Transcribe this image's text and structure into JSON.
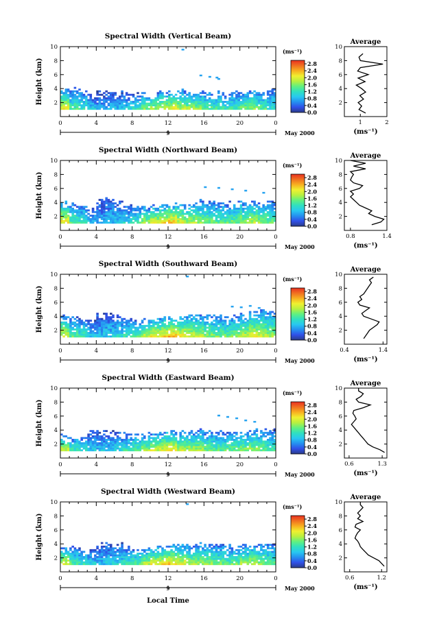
{
  "figure": {
    "xlabel": "Local Time",
    "date_label": "May 2000",
    "day_label": "9"
  },
  "colorbar": {
    "unit": "(ms⁻¹)",
    "ticks": [
      "2.8",
      "2.4",
      "2.0",
      "1.6",
      "1.2",
      "0.8",
      "0.4",
      "0.0"
    ],
    "range": [
      0,
      3.0
    ],
    "stops": [
      "#2b3c88",
      "#3050e8",
      "#2590f0",
      "#28c8f0",
      "#30e0c0",
      "#60f080",
      "#b8f040",
      "#f0f030",
      "#f8b020",
      "#f07020",
      "#e83020"
    ]
  },
  "chart_data": [
    {
      "type": "heatmap",
      "title": "Spectral Width (Vertical Beam)",
      "ylabel": "Height (km)",
      "xlim": [
        0,
        24
      ],
      "ylim": [
        0,
        10
      ],
      "x_ticks": [
        "0",
        "4",
        "8",
        "12",
        "16",
        "20",
        "0"
      ],
      "y_ticks": [
        "2",
        "4",
        "6",
        "8",
        "10"
      ],
      "echo_base_km": 0.9,
      "echo_top_km": [
        3.9,
        3.9,
        3.7,
        3.0,
        3.5,
        3.6,
        3.5,
        3.4,
        3.2,
        3.3,
        3.4,
        3.5,
        3.5,
        3.6,
        3.4,
        3.5,
        3.4,
        3.3,
        3.2,
        3.4,
        3.5,
        3.6,
        3.5,
        3.8
      ],
      "width_at_base_ms": [
        2.1,
        1.4,
        1.3,
        1.0,
        0.7,
        0.8,
        0.9,
        1.0,
        1.2,
        1.6,
        1.8,
        2.0,
        2.1,
        1.9,
        1.8,
        1.7,
        1.5,
        1.4,
        1.3,
        1.4,
        1.6,
        1.7,
        1.5,
        1.2
      ],
      "sparse_echo": {
        "x": [
          13.5,
          15.5,
          16.5,
          17.3,
          17.5
        ],
        "y": [
          9.7,
          6.0,
          5.8,
          5.7,
          5.5
        ]
      },
      "average_profile": {
        "title": "Average",
        "xlabel": "(ms⁻¹)",
        "xlim": [
          0.4,
          2.0
        ],
        "x_ticks": [
          "1",
          "2"
        ],
        "x_tick_values": [
          1,
          2
        ],
        "y_ticks": [
          "2",
          "4",
          "6",
          "8",
          "10"
        ],
        "height_km": [
          0.5,
          1.0,
          1.5,
          2.0,
          2.5,
          3.0,
          3.5,
          4.0,
          4.5,
          5.0,
          5.5,
          6.0,
          6.5,
          7.0,
          7.5,
          8.0,
          8.5,
          9.0
        ],
        "width_ms": [
          1.2,
          0.95,
          1.05,
          0.92,
          1.12,
          0.98,
          1.2,
          1.05,
          0.85,
          1.18,
          0.92,
          1.3,
          0.9,
          1.0,
          1.85,
          1.0,
          0.95,
          1.1
        ]
      }
    },
    {
      "type": "heatmap",
      "title": "Spectral Width (Northward Beam)",
      "ylabel": "Height (km)",
      "xlim": [
        0,
        24
      ],
      "ylim": [
        0,
        10
      ],
      "x_ticks": [
        "0",
        "4",
        "8",
        "12",
        "16",
        "20",
        "0"
      ],
      "y_ticks": [
        "2",
        "4",
        "6",
        "8",
        "10"
      ],
      "echo_base_km": 0.9,
      "echo_top_km": [
        3.9,
        3.8,
        3.6,
        3.0,
        4.2,
        4.3,
        4.0,
        3.6,
        3.2,
        3.3,
        3.4,
        3.6,
        3.7,
        3.7,
        3.5,
        4.2,
        4.1,
        4.0,
        3.8,
        3.8,
        4.0,
        4.2,
        4.0,
        4.2
      ],
      "width_at_base_ms": [
        2.2,
        1.5,
        1.3,
        0.9,
        0.8,
        0.9,
        1.0,
        1.1,
        1.4,
        1.8,
        2.1,
        2.2,
        2.4,
        2.1,
        1.9,
        1.8,
        1.6,
        1.5,
        1.5,
        1.6,
        1.8,
        1.9,
        1.7,
        1.5
      ],
      "sparse_echo": {
        "x": [
          16.0,
          17.5,
          19.0,
          20.5,
          22.5
        ],
        "y": [
          6.3,
          6.2,
          6.0,
          5.8,
          5.5
        ]
      },
      "average_profile": {
        "title": "Average",
        "xlabel": "(ms⁻¹)",
        "xlim": [
          0.7,
          1.4
        ],
        "x_ticks": [
          "0.8",
          "1.4"
        ],
        "x_tick_values": [
          0.8,
          1.4
        ],
        "y_ticks": [
          "2",
          "4",
          "6",
          "8",
          "10"
        ],
        "height_km": [
          0.8,
          1.2,
          1.6,
          2.0,
          2.4,
          2.8,
          3.2,
          3.6,
          4.0,
          4.4,
          4.8,
          5.2,
          5.6,
          6.0,
          6.4,
          6.8,
          7.2,
          7.6,
          8.0,
          8.4,
          8.8,
          9.2,
          9.6,
          10.0
        ],
        "width_ms": [
          1.15,
          1.3,
          1.35,
          1.2,
          1.1,
          1.15,
          1.05,
          0.95,
          0.9,
          0.85,
          0.8,
          0.85,
          0.8,
          0.95,
          1.0,
          0.85,
          0.8,
          0.82,
          0.85,
          0.8,
          1.05,
          0.85,
          1.05,
          0.8
        ]
      }
    },
    {
      "type": "heatmap",
      "title": "Spectral Width (Southward Beam)",
      "ylabel": "Height (km)",
      "xlim": [
        0,
        24
      ],
      "ylim": [
        0,
        10
      ],
      "x_ticks": [
        "0",
        "4",
        "8",
        "12",
        "16",
        "20",
        "0"
      ],
      "y_ticks": [
        "2",
        "4",
        "6",
        "8",
        "10"
      ],
      "echo_base_km": 0.9,
      "echo_top_km": [
        4.0,
        3.8,
        3.6,
        3.2,
        4.2,
        4.3,
        4.1,
        3.7,
        3.3,
        3.4,
        3.5,
        3.6,
        3.8,
        3.8,
        4.0,
        4.2,
        4.1,
        4.2,
        4.0,
        4.0,
        4.2,
        4.6,
        4.8,
        4.8
      ],
      "width_at_base_ms": [
        2.1,
        1.5,
        1.3,
        1.0,
        0.9,
        1.0,
        1.1,
        1.3,
        1.5,
        1.9,
        2.2,
        2.3,
        2.4,
        2.2,
        2.0,
        1.9,
        1.7,
        1.6,
        1.6,
        1.7,
        1.9,
        2.1,
        2.0,
        1.8
      ],
      "sparse_echo": {
        "x": [
          14.0,
          19.0,
          20.0,
          21.0,
          22.0
        ],
        "y": [
          9.8,
          5.5,
          5.4,
          5.6,
          5.3
        ]
      },
      "average_profile": {
        "title": "Average",
        "xlabel": "(ms⁻¹)",
        "xlim": [
          0.4,
          1.5
        ],
        "x_ticks": [
          "0.4",
          "1.4"
        ],
        "x_tick_values": [
          0.4,
          1.4
        ],
        "y_ticks": [
          "2",
          "4",
          "6",
          "8",
          "10"
        ],
        "height_km": [
          0.8,
          1.2,
          1.6,
          2.0,
          2.4,
          2.8,
          3.2,
          3.6,
          4.0,
          4.4,
          4.8,
          5.2,
          5.6,
          6.0,
          6.4,
          6.8,
          7.2,
          7.6,
          8.0,
          8.4,
          8.8,
          9.2,
          9.6
        ],
        "width_ms": [
          0.9,
          0.95,
          1.0,
          1.05,
          1.15,
          1.25,
          1.3,
          1.1,
          0.9,
          0.85,
          0.95,
          1.05,
          0.8,
          0.75,
          0.85,
          0.8,
          0.9,
          0.95,
          1.0,
          1.05,
          1.1,
          1.05,
          1.15
        ]
      }
    },
    {
      "type": "heatmap",
      "title": "Spectral Width (Eastward Beam)",
      "ylabel": "Height (km)",
      "xlim": [
        0,
        24
      ],
      "ylim": [
        0,
        10
      ],
      "x_ticks": [
        "0",
        "4",
        "8",
        "12",
        "16",
        "20",
        "0"
      ],
      "y_ticks": [
        "2",
        "4",
        "6",
        "8",
        "10"
      ],
      "echo_base_km": 0.9,
      "echo_top_km": [
        3.2,
        3.0,
        2.8,
        3.6,
        3.9,
        3.8,
        3.7,
        3.6,
        3.4,
        3.4,
        3.5,
        3.7,
        3.8,
        3.7,
        3.6,
        3.9,
        3.8,
        3.8,
        3.6,
        3.6,
        3.8,
        4.0,
        3.9,
        4.0
      ],
      "width_at_base_ms": [
        2.0,
        1.4,
        1.3,
        1.0,
        0.9,
        1.0,
        1.1,
        1.3,
        1.5,
        1.8,
        2.0,
        2.1,
        2.2,
        2.0,
        1.9,
        1.8,
        1.6,
        1.5,
        1.5,
        1.6,
        1.7,
        1.8,
        1.6,
        1.4
      ],
      "sparse_echo": {
        "x": [
          17.5,
          18.5,
          19.5,
          20.5,
          21.5
        ],
        "y": [
          6.2,
          6.0,
          5.8,
          5.5,
          5.3
        ]
      },
      "average_profile": {
        "title": "Average",
        "xlabel": "(ms⁻¹)",
        "xlim": [
          0.5,
          1.4
        ],
        "x_ticks": [
          "0.6",
          "1.3"
        ],
        "x_tick_values": [
          0.6,
          1.3
        ],
        "y_ticks": [
          "2",
          "4",
          "6",
          "8",
          "10"
        ],
        "height_km": [
          0.8,
          1.2,
          1.6,
          2.0,
          2.4,
          2.8,
          3.2,
          3.6,
          4.0,
          4.4,
          4.8,
          5.2,
          5.6,
          6.0,
          6.4,
          6.8,
          7.2,
          7.6,
          8.0,
          8.4,
          8.8,
          9.2,
          9.6,
          10.0
        ],
        "width_ms": [
          1.35,
          1.25,
          1.1,
          1.0,
          0.95,
          0.9,
          0.85,
          0.8,
          0.75,
          0.7,
          0.65,
          0.7,
          0.75,
          0.72,
          0.68,
          0.7,
          0.9,
          1.05,
          0.8,
          0.75,
          0.85,
          0.9,
          0.8,
          0.8
        ]
      }
    },
    {
      "type": "heatmap",
      "title": "Spectral Width (Westward Beam)",
      "ylabel": "Height (km)",
      "xlim": [
        0,
        24
      ],
      "ylim": [
        0,
        10
      ],
      "x_ticks": [
        "0",
        "4",
        "8",
        "12",
        "16",
        "20",
        "0"
      ],
      "y_ticks": [
        "2",
        "4",
        "6",
        "8",
        "10"
      ],
      "echo_base_km": 0.9,
      "echo_top_km": [
        3.6,
        3.4,
        3.2,
        3.0,
        3.9,
        3.9,
        3.8,
        3.6,
        3.3,
        3.4,
        3.5,
        3.7,
        3.8,
        3.8,
        3.6,
        3.9,
        3.9,
        3.8,
        3.6,
        3.6,
        3.8,
        4.0,
        3.9,
        4.0
      ],
      "width_at_base_ms": [
        2.1,
        1.5,
        1.3,
        1.0,
        0.9,
        1.0,
        1.1,
        1.3,
        1.5,
        1.9,
        2.1,
        2.2,
        2.3,
        2.1,
        1.9,
        1.8,
        1.7,
        1.6,
        1.5,
        1.6,
        1.8,
        1.9,
        1.7,
        1.5
      ],
      "sparse_echo": {
        "x": [
          14.0
        ],
        "y": [
          9.8
        ]
      },
      "average_profile": {
        "title": "Average",
        "xlabel": "(ms⁻¹)",
        "xlim": [
          0.5,
          1.3
        ],
        "x_ticks": [
          "0.6",
          "1.2"
        ],
        "x_tick_values": [
          0.6,
          1.2
        ],
        "y_ticks": [
          "2",
          "4",
          "6",
          "8",
          "10"
        ],
        "height_km": [
          0.8,
          1.2,
          1.6,
          2.0,
          2.4,
          2.8,
          3.2,
          3.6,
          4.0,
          4.4,
          4.8,
          5.2,
          5.6,
          6.0,
          6.4,
          6.8,
          7.2,
          7.6,
          8.0,
          8.4,
          8.8,
          9.2,
          9.6,
          10.0
        ],
        "width_ms": [
          1.25,
          1.2,
          1.15,
          1.05,
          0.95,
          0.9,
          0.85,
          0.8,
          0.78,
          0.75,
          0.7,
          0.72,
          0.75,
          0.8,
          0.7,
          0.72,
          0.85,
          0.75,
          0.8,
          0.75,
          0.8,
          0.85,
          0.8,
          0.8
        ]
      }
    }
  ]
}
